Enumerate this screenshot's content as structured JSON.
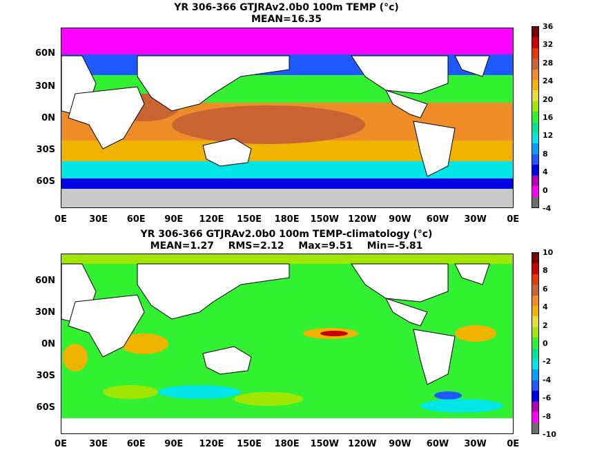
{
  "panel1": {
    "title": "YR 306-366 GTJRAv2.0b0 100m TEMP (°c)",
    "subtitle": "MEAN=16.35",
    "colorbar": {
      "ticks": [
        "36",
        "32",
        "28",
        "24",
        "20",
        "16",
        "12",
        "8",
        "4",
        "0",
        "-4"
      ],
      "colors": [
        "#6e6e6e",
        "#ff00ff",
        "#b400b4",
        "#0000e6",
        "#1e5aff",
        "#00a0ff",
        "#00e6e6",
        "#00e696",
        "#32f032",
        "#a0e600",
        "#e6dc32",
        "#f0b400",
        "#f08c28",
        "#c86432",
        "#e63c00",
        "#c80000",
        "#780000"
      ]
    }
  },
  "panel2": {
    "title": "YR 306-366 GTJRAv2.0b0 100m TEMP-climatology (°c)",
    "stats": {
      "mean": "MEAN=1.27",
      "rms": "RMS=2.12",
      "max": "Max=9.51",
      "min": "Min=-5.81"
    },
    "colorbar": {
      "ticks": [
        "10",
        "8",
        "6",
        "4",
        "2",
        "0",
        "-2",
        "-4",
        "-6",
        "-8",
        "-10"
      ],
      "colors": [
        "#6e6e6e",
        "#ff00ff",
        "#b400b4",
        "#0000e6",
        "#1e5aff",
        "#00a0ff",
        "#00e6e6",
        "#00e696",
        "#32f032",
        "#a0e600",
        "#e6dc32",
        "#f0b400",
        "#f08c28",
        "#c86432",
        "#e63c00",
        "#c80000",
        "#780000"
      ]
    }
  },
  "axes": {
    "lat_labels": [
      "60N",
      "30N",
      "0N",
      "30S",
      "60S"
    ],
    "lon_labels": [
      "0E",
      "30E",
      "60E",
      "90E",
      "120E",
      "150E",
      "180E",
      "150W",
      "120W",
      "90W",
      "60W",
      "30W",
      "0E"
    ]
  },
  "map_colors": {
    "land": "#ffffff",
    "ice": "#c8c8c8",
    "warm_pool": "#c86432",
    "tropical": "#f08c28",
    "subtropical": "#f0b400",
    "midlat": "#32f032",
    "cool": "#00e6e6",
    "cold": "#1e5aff",
    "polar": "#0000e6",
    "frozen": "#ff00ff",
    "anom_base": "#32f032",
    "anom_light": "#a0e600",
    "anom_pos": "#f0b400",
    "anom_strong": "#c80000",
    "anom_neg": "#00e6e6",
    "anom_cold": "#1e5aff"
  }
}
